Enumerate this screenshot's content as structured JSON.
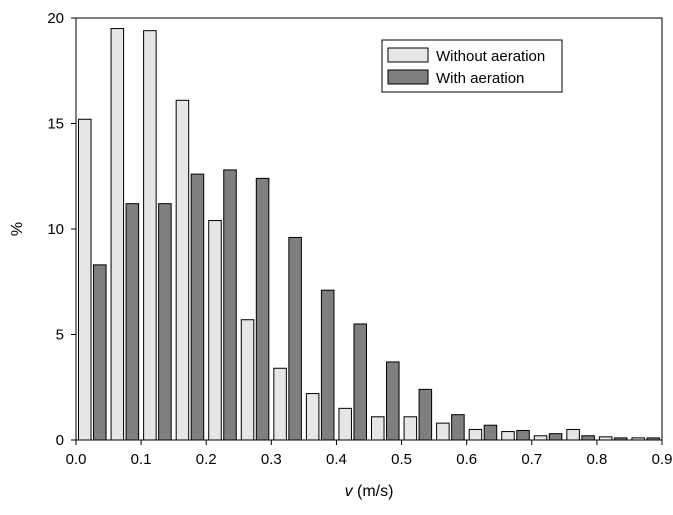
{
  "chart_data": {
    "type": "bar",
    "xlabel": "v (m/s)",
    "xlabel_parts": {
      "var": "v",
      "unit": " (m/s)"
    },
    "ylabel": "%",
    "xlim": [
      0.0,
      0.9
    ],
    "ylim": [
      0,
      20
    ],
    "x_ticks": [
      "0.0",
      "0.1",
      "0.2",
      "0.3",
      "0.4",
      "0.5",
      "0.6",
      "0.7",
      "0.8",
      "0.9"
    ],
    "y_ticks": [
      "0",
      "5",
      "10",
      "15",
      "20"
    ],
    "bin_width": 0.05,
    "x": [
      0.025,
      0.075,
      0.125,
      0.175,
      0.225,
      0.275,
      0.325,
      0.375,
      0.425,
      0.475,
      0.525,
      0.575,
      0.625,
      0.675,
      0.725,
      0.775,
      0.825,
      0.875
    ],
    "series": [
      {
        "name": "Without aeration",
        "color": "#e6e6e6",
        "values": [
          15.2,
          19.5,
          19.4,
          16.1,
          10.4,
          5.7,
          3.4,
          2.2,
          1.5,
          1.1,
          1.1,
          0.8,
          0.5,
          0.4,
          0.2,
          0.5,
          0.15,
          0.1
        ]
      },
      {
        "name": "With aeration",
        "color": "#7f7f7f",
        "values": [
          8.3,
          11.2,
          11.2,
          12.6,
          12.8,
          12.4,
          9.6,
          7.1,
          5.5,
          3.7,
          2.4,
          1.2,
          0.7,
          0.45,
          0.3,
          0.2,
          0.1,
          0.1
        ]
      }
    ],
    "legend": {
      "placement": "top-right"
    },
    "grid": false
  }
}
